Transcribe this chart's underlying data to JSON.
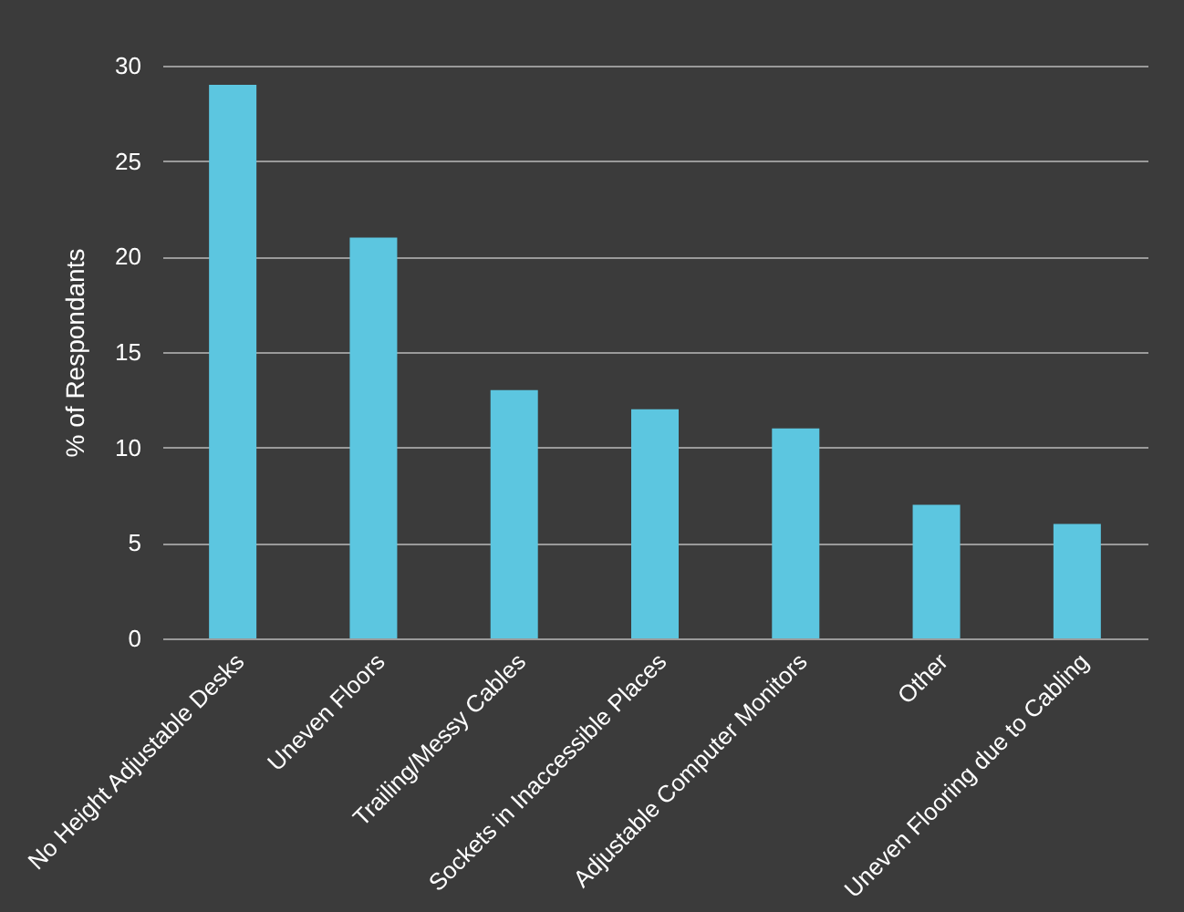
{
  "chart_data": {
    "type": "bar",
    "ylabel": "% of Respondants",
    "categories": [
      "No Height Adjustable Desks",
      "Uneven Floors",
      "Trailing/Messy Cables",
      "Sockets in Inaccessible Places",
      "Adjustable Computer Monitors",
      "Other",
      "Uneven Flooring due to Cabling"
    ],
    "values": [
      29,
      21,
      13,
      12,
      11,
      7,
      6
    ],
    "color": "#5cc6e0",
    "ylim": [
      0,
      30
    ],
    "yticks": [
      0,
      5,
      10,
      15,
      20,
      25,
      30
    ],
    "grid": "y"
  }
}
